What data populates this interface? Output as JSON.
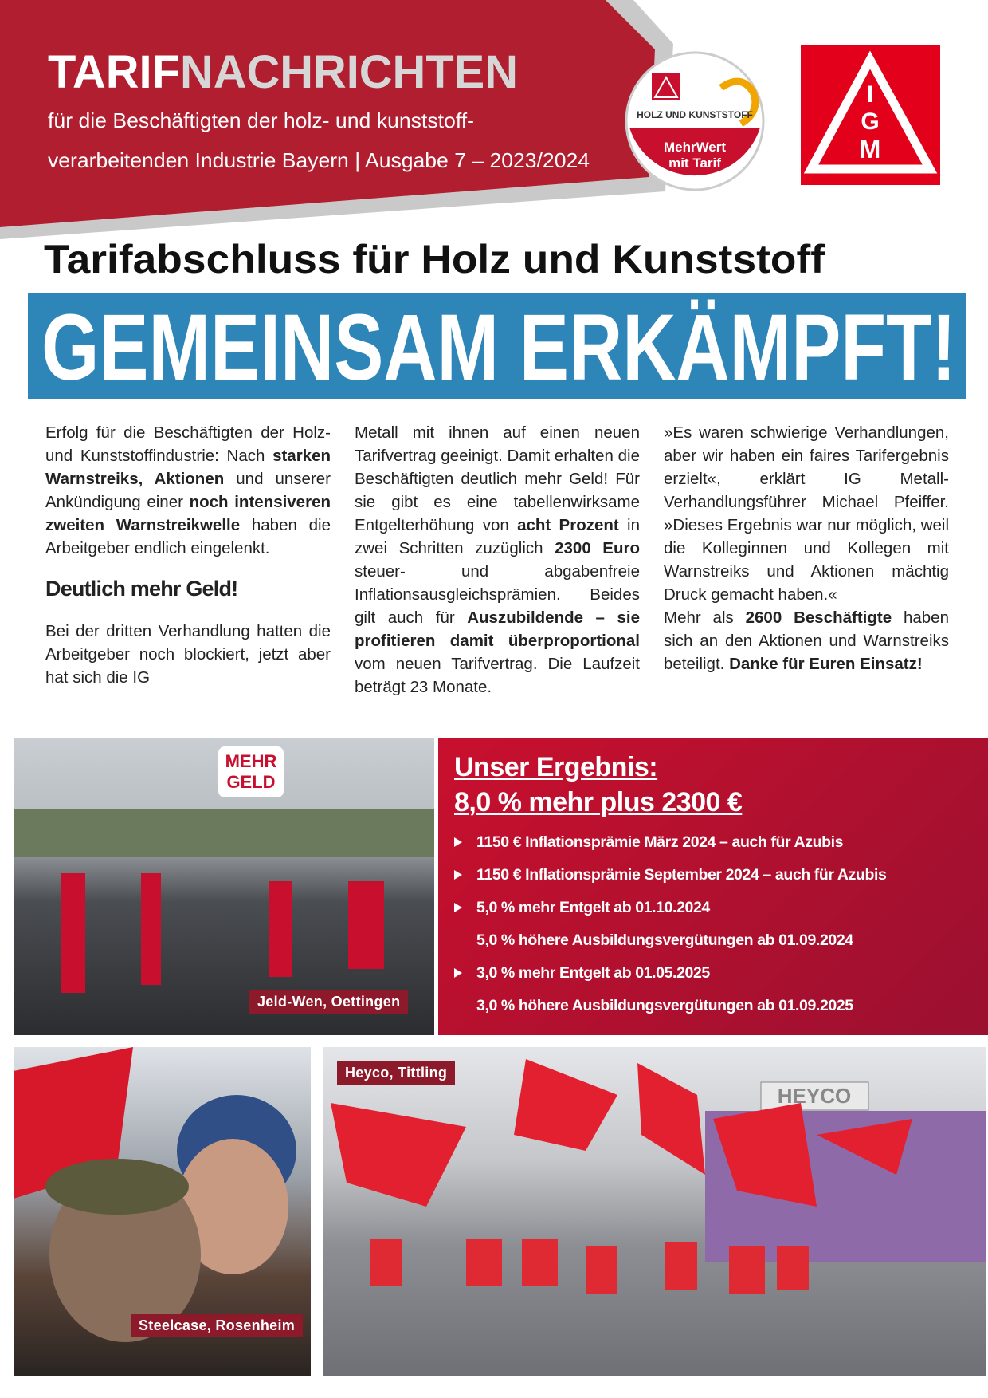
{
  "header": {
    "title_a": "TARIF",
    "title_b": "NACHRICHTEN",
    "subtitle_1": "für die Beschäftigten der holz- und kunststoff-",
    "subtitle_2": "verarbeitenden Industrie Bayern | Ausgabe 7 – 2023/2024"
  },
  "badge": {
    "top": "HOLZ UND KUNSTSTOFF",
    "bottom_1": "MehrWert",
    "bottom_2": "mit Tarif"
  },
  "logo": {
    "letters": [
      "I",
      "G",
      "M"
    ]
  },
  "headline": "Tarifabschluss für Holz und Kunststoff",
  "banner": "GEMEINSAM ERKÄMPFT!",
  "columns": [
    [
      {
        "paragraph": [
          "Erfolg für die Beschäftigten der Holz- und Kunststoffindustrie: Nach ",
          {
            "strong": "starken Warnstreiks, Aktionen"
          },
          " und unserer Ankündigung einer ",
          {
            "strong": "noch intensiveren zweiten Warnstreikwelle"
          },
          " haben die Arbeitgeber endlich eingelenkt."
        ]
      },
      {
        "heading": "Deutlich mehr Geld!"
      },
      {
        "paragraph": [
          "Bei der dritten Verhandlung hatten die Arbeitgeber noch blockiert, jetzt aber hat sich die IG"
        ]
      }
    ],
    [
      {
        "paragraph": [
          "Metall mit ihnen auf einen neuen Tarifvertrag geeinigt. Damit erhalten die Beschäftigten deutlich mehr Geld! Für sie gibt es eine tabellenwirksame Entgelterhöhung von ",
          {
            "strong": "acht Prozent"
          },
          " in zwei Schritten zuzüglich ",
          {
            "strong": "2300 Euro"
          },
          " steuer- und abgabenfreie Inflationsausgleichsprämien. Beides gilt auch für ",
          {
            "strong": "Auszubildende – sie profitieren damit überproportional"
          },
          " vom neuen Tarifvertrag. Die Laufzeit beträgt 23 Monate."
        ]
      }
    ],
    [
      {
        "paragraph": [
          "»Es waren schwierige Verhandlungen, aber wir haben ein faires Tarifergebnis erzielt«, erklärt IG Metall-Verhandlungsführer Michael Pfeiffer. »Dieses Ergebnis war nur möglich, weil die Kolleginnen und Kollegen mit Warnstreiks und Aktionen mächtig Druck gemacht haben.«"
        ]
      },
      {
        "paragraph": [
          "Mehr als ",
          {
            "strong": "2600 Beschäftigte"
          },
          " haben sich an den Aktionen und Warnstreiks beteiligt. ",
          {
            "strong": "Danke für Euren Einsatz!"
          }
        ]
      }
    ]
  ],
  "result": {
    "title_1": "Unser Ergebnis:",
    "title_2": "8,0 % mehr plus 2300 €",
    "items": [
      {
        "text": "1150 € Inflationsprämie März 2024 – auch für Azubis",
        "bullet": true
      },
      {
        "text": "1150 € Inflationsprämie September 2024 – auch für Azubis",
        "bullet": true
      },
      {
        "text": "5,0 % mehr Entgelt ab 01.10.2024",
        "bullet": true
      },
      {
        "text": "5,0 % höhere Ausbildungsvergütungen ab 01.09.2024",
        "bullet": false
      },
      {
        "text": "3,0 % mehr Entgelt ab 01.05.2025",
        "bullet": true
      },
      {
        "text": "3,0 % höhere Ausbildungsvergütungen ab 01.09.2025",
        "bullet": false
      }
    ]
  },
  "photos": [
    {
      "caption": "Jeld-Wen, Oettingen",
      "sign": "MEHR GELD"
    },
    {
      "caption": "Steelcase, Rosenheim"
    },
    {
      "caption": "Heyco, Tittling",
      "sign": "HEYCO"
    }
  ]
}
